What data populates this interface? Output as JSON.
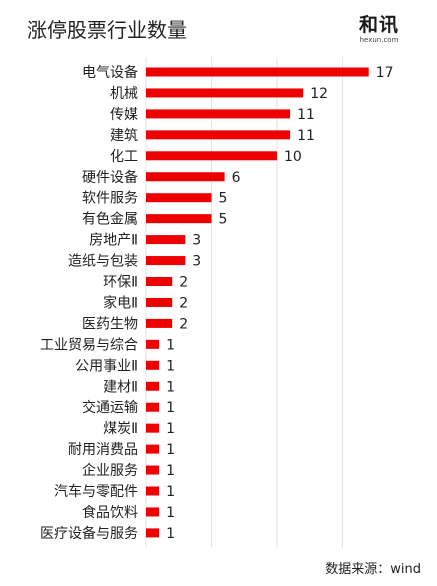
{
  "title": "涨停股票行业数量",
  "logo": {
    "main": "和讯",
    "sub": "hexun.com"
  },
  "source": "数据来源：wind",
  "colors": {
    "bar": "#ee0000",
    "grid": "#e3e3e3",
    "text": "#222222"
  },
  "chart_data": {
    "type": "bar",
    "orientation": "horizontal",
    "title": "涨停股票行业数量",
    "categories": [
      "电气设备",
      "机械",
      "传媒",
      "建筑",
      "化工",
      "硬件设备",
      "软件服务",
      "有色金属",
      "房地产Ⅱ",
      "造纸与包装",
      "环保Ⅱ",
      "家电Ⅱ",
      "医药生物",
      "工业贸易与综合",
      "公用事业Ⅱ",
      "建材Ⅱ",
      "交通运输",
      "煤炭Ⅱ",
      "耐用消费品",
      "企业服务",
      "汽车与零配件",
      "食品饮料",
      "医疗设备与服务"
    ],
    "values": [
      17,
      12,
      11,
      11,
      10,
      6,
      5,
      5,
      3,
      3,
      2,
      2,
      2,
      1,
      1,
      1,
      1,
      1,
      1,
      1,
      1,
      1,
      1
    ],
    "xlim": [
      0,
      18
    ],
    "grid": true,
    "data_labels": true
  }
}
